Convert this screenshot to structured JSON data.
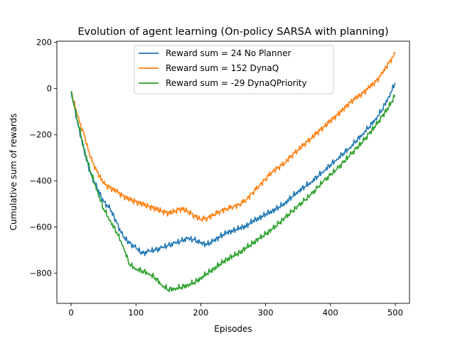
{
  "chart_data": {
    "type": "line",
    "title": "Evolution of agent learning (On-policy SARSA with planning)",
    "xlabel": "Episodes",
    "ylabel": "Cumulative sum of rewards",
    "xlim": [
      -22,
      522
    ],
    "ylim": [
      -930,
      205
    ],
    "xticks": [
      0,
      100,
      200,
      300,
      400,
      500
    ],
    "yticks": [
      -800,
      -600,
      -400,
      -200,
      0,
      200
    ],
    "grid": false,
    "legend_position": "top-center",
    "series": [
      {
        "name": "Reward sum = 24 No Planner",
        "color": "#1f77b4",
        "x": [
          0,
          10,
          20,
          30,
          40,
          50,
          60,
          70,
          80,
          90,
          100,
          110,
          120,
          130,
          140,
          150,
          160,
          170,
          180,
          190,
          200,
          210,
          220,
          230,
          240,
          250,
          260,
          270,
          280,
          290,
          300,
          310,
          320,
          330,
          340,
          350,
          360,
          370,
          380,
          390,
          400,
          410,
          420,
          430,
          440,
          450,
          460,
          470,
          480,
          490,
          500
        ],
        "y": [
          -12,
          -150,
          -270,
          -370,
          -430,
          -490,
          -520,
          -580,
          -640,
          -670,
          -690,
          -715,
          -705,
          -700,
          -690,
          -680,
          -670,
          -660,
          -650,
          -655,
          -670,
          -675,
          -660,
          -640,
          -625,
          -615,
          -605,
          -595,
          -575,
          -560,
          -545,
          -530,
          -515,
          -495,
          -470,
          -445,
          -425,
          -405,
          -380,
          -355,
          -330,
          -305,
          -280,
          -255,
          -225,
          -195,
          -165,
          -130,
          -90,
          -35,
          24
        ]
      },
      {
        "name": "Reward sum = 152 DynaQ",
        "color": "#ff7f0e",
        "x": [
          0,
          10,
          20,
          30,
          40,
          50,
          60,
          70,
          80,
          90,
          100,
          110,
          120,
          130,
          140,
          150,
          160,
          170,
          180,
          190,
          200,
          210,
          220,
          230,
          240,
          250,
          260,
          270,
          280,
          290,
          300,
          310,
          320,
          330,
          340,
          350,
          360,
          370,
          380,
          390,
          400,
          410,
          420,
          430,
          440,
          450,
          460,
          470,
          480,
          490,
          500
        ],
        "y": [
          -12,
          -120,
          -200,
          -300,
          -360,
          -410,
          -430,
          -445,
          -465,
          -480,
          -490,
          -500,
          -510,
          -520,
          -530,
          -540,
          -530,
          -520,
          -530,
          -550,
          -565,
          -560,
          -545,
          -530,
          -520,
          -510,
          -500,
          -480,
          -450,
          -420,
          -390,
          -360,
          -340,
          -320,
          -290,
          -265,
          -240,
          -215,
          -190,
          -165,
          -140,
          -115,
          -90,
          -60,
          -40,
          -20,
          5,
          30,
          65,
          110,
          152
        ]
      },
      {
        "name": "Reward sum = -29 DynaQPriority",
        "color": "#2ca02c",
        "x": [
          0,
          10,
          20,
          30,
          40,
          50,
          60,
          70,
          80,
          90,
          100,
          110,
          120,
          130,
          140,
          150,
          160,
          170,
          180,
          190,
          200,
          210,
          220,
          230,
          240,
          250,
          260,
          270,
          280,
          290,
          300,
          310,
          320,
          330,
          340,
          350,
          360,
          370,
          380,
          390,
          400,
          410,
          420,
          430,
          440,
          450,
          460,
          470,
          480,
          490,
          500
        ],
        "y": [
          -12,
          -140,
          -260,
          -360,
          -440,
          -520,
          -570,
          -620,
          -680,
          -760,
          -780,
          -790,
          -800,
          -820,
          -850,
          -870,
          -865,
          -860,
          -850,
          -840,
          -820,
          -800,
          -780,
          -760,
          -740,
          -725,
          -710,
          -690,
          -670,
          -650,
          -630,
          -610,
          -585,
          -560,
          -535,
          -510,
          -485,
          -460,
          -430,
          -400,
          -375,
          -350,
          -320,
          -290,
          -260,
          -230,
          -195,
          -160,
          -120,
          -80,
          -29
        ]
      }
    ]
  }
}
